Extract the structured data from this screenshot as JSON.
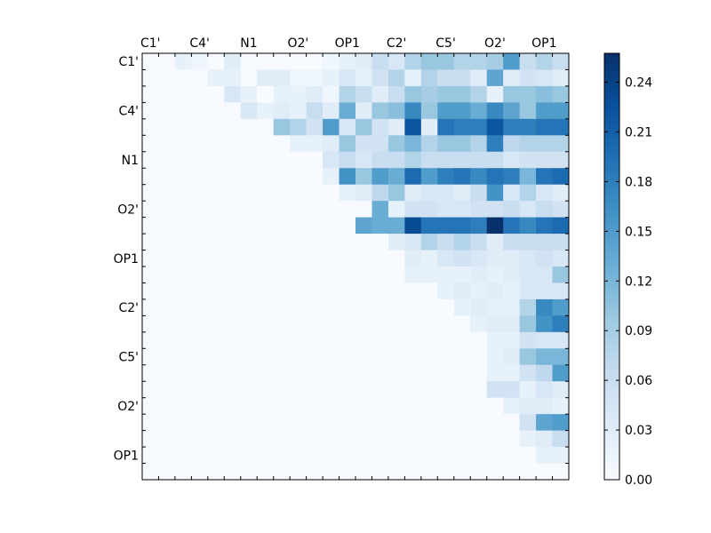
{
  "chart_data": {
    "type": "heatmap",
    "title": "",
    "xlabel": "",
    "ylabel": "",
    "grid": false,
    "colormap": "Blues",
    "n": 26,
    "x_tick_labels": [
      "C1'",
      "C4'",
      "N1",
      "O2'",
      "OP1",
      "C2'",
      "C5'",
      "O2'",
      "OP1"
    ],
    "y_tick_labels": [
      "C1'",
      "C4'",
      "N1",
      "O2'",
      "OP1",
      "C2'",
      "C5'",
      "O2'",
      "OP1"
    ],
    "colorbar": {
      "range": [
        0.0,
        0.2575
      ],
      "tick_labels": [
        "0.00",
        "0.03",
        "0.06",
        "0.09",
        "0.12",
        "0.15",
        "0.18",
        "0.21",
        "0.24"
      ]
    },
    "rows": [
      [
        0,
        0,
        0.02,
        0.01,
        0,
        0.03,
        0,
        0,
        0,
        0,
        0,
        0.01,
        0.02,
        0.03,
        0.06,
        0.04,
        0.08,
        0.1,
        0.1,
        0.08,
        0.08,
        0.09,
        0.15,
        0.06,
        0.08,
        0.06
      ],
      [
        0,
        0,
        0,
        0,
        0.02,
        0.02,
        0,
        0.03,
        0.03,
        0.01,
        0.01,
        0.02,
        0.04,
        0.02,
        0.05,
        0.08,
        0.02,
        0.08,
        0.06,
        0.06,
        0.03,
        0.14,
        0.03,
        0.05,
        0.04,
        0.03
      ],
      [
        0,
        0,
        0,
        0,
        0,
        0.04,
        0.02,
        0,
        0.02,
        0.02,
        0.03,
        0.01,
        0.08,
        0.06,
        0.03,
        0.06,
        0.1,
        0.09,
        0.1,
        0.1,
        0.08,
        0.02,
        0.1,
        0.1,
        0.11,
        0.1
      ],
      [
        0,
        0,
        0,
        0,
        0,
        0,
        0.04,
        0.02,
        0.03,
        0.02,
        0.06,
        0.03,
        0.13,
        0.03,
        0.1,
        0.11,
        0.17,
        0.1,
        0.15,
        0.15,
        0.13,
        0.17,
        0.14,
        0.1,
        0.15,
        0.15
      ],
      [
        0,
        0,
        0,
        0,
        0,
        0,
        0,
        0,
        0.1,
        0.08,
        0.05,
        0.15,
        0.04,
        0.1,
        0.05,
        0.03,
        0.22,
        0.03,
        0.19,
        0.18,
        0.18,
        0.22,
        0.18,
        0.18,
        0.19,
        0.19
      ],
      [
        0,
        0,
        0,
        0,
        0,
        0,
        0,
        0,
        0,
        0.02,
        0.02,
        0.03,
        0.1,
        0.05,
        0.05,
        0.1,
        0.12,
        0.08,
        0.1,
        0.1,
        0.08,
        0.18,
        0.07,
        0.08,
        0.08,
        0.08
      ],
      [
        0,
        0,
        0,
        0,
        0,
        0,
        0,
        0,
        0,
        0,
        0,
        0.04,
        0.06,
        0.04,
        0.06,
        0.06,
        0.08,
        0.06,
        0.06,
        0.06,
        0.06,
        0.06,
        0.04,
        0.05,
        0.05,
        0.05
      ],
      [
        0,
        0,
        0,
        0,
        0,
        0,
        0,
        0,
        0,
        0,
        0,
        0.02,
        0.16,
        0.1,
        0.15,
        0.13,
        0.2,
        0.15,
        0.18,
        0.19,
        0.17,
        0.19,
        0.18,
        0.12,
        0.19,
        0.2
      ],
      [
        0,
        0,
        0,
        0,
        0,
        0,
        0,
        0,
        0,
        0,
        0,
        0,
        0.02,
        0.03,
        0.07,
        0.1,
        0.03,
        0.04,
        0.04,
        0.03,
        0.06,
        0.16,
        0.04,
        0.08,
        0.04,
        0.03
      ],
      [
        0,
        0,
        0,
        0,
        0,
        0,
        0,
        0,
        0,
        0,
        0,
        0,
        0,
        0,
        0.13,
        0.02,
        0.05,
        0.05,
        0.04,
        0.04,
        0.05,
        0.05,
        0.06,
        0.04,
        0.06,
        0.05
      ],
      [
        0,
        0,
        0,
        0,
        0,
        0,
        0,
        0,
        0,
        0,
        0,
        0,
        0,
        0.14,
        0.13,
        0.13,
        0.23,
        0.19,
        0.19,
        0.19,
        0.18,
        0.26,
        0.19,
        0.17,
        0.19,
        0.2
      ],
      [
        0,
        0,
        0,
        0,
        0,
        0,
        0,
        0,
        0,
        0,
        0,
        0,
        0,
        0,
        0,
        0.03,
        0.04,
        0.08,
        0.06,
        0.08,
        0.06,
        0.03,
        0.06,
        0.06,
        0.06,
        0.06
      ],
      [
        0,
        0,
        0,
        0,
        0,
        0,
        0,
        0,
        0,
        0,
        0,
        0,
        0,
        0,
        0,
        0,
        0.03,
        0.02,
        0.04,
        0.05,
        0.04,
        0.03,
        0.03,
        0.04,
        0.05,
        0.04
      ],
      [
        0,
        0,
        0,
        0,
        0,
        0,
        0,
        0,
        0,
        0,
        0,
        0,
        0,
        0,
        0,
        0,
        0.02,
        0.02,
        0.02,
        0.02,
        0.03,
        0.02,
        0.03,
        0.04,
        0.04,
        0.1
      ],
      [
        0,
        0,
        0,
        0,
        0,
        0,
        0,
        0,
        0,
        0,
        0,
        0,
        0,
        0,
        0,
        0,
        0,
        0,
        0.02,
        0.03,
        0.02,
        0.03,
        0.02,
        0.04,
        0.04,
        0.04
      ],
      [
        0,
        0,
        0,
        0,
        0,
        0,
        0,
        0,
        0,
        0,
        0,
        0,
        0,
        0,
        0,
        0,
        0,
        0,
        0,
        0.02,
        0.03,
        0.02,
        0.02,
        0.08,
        0.17,
        0.15
      ],
      [
        0,
        0,
        0,
        0,
        0,
        0,
        0,
        0,
        0,
        0,
        0,
        0,
        0,
        0,
        0,
        0,
        0,
        0,
        0,
        0,
        0.02,
        0.03,
        0.03,
        0.1,
        0.16,
        0.18
      ],
      [
        0,
        0,
        0,
        0,
        0,
        0,
        0,
        0,
        0,
        0,
        0,
        0,
        0,
        0,
        0,
        0,
        0,
        0,
        0,
        0,
        0,
        0.02,
        0.02,
        0.05,
        0.04,
        0.04
      ],
      [
        0,
        0,
        0,
        0,
        0,
        0,
        0,
        0,
        0,
        0,
        0,
        0,
        0,
        0,
        0,
        0,
        0,
        0,
        0,
        0,
        0,
        0.02,
        0.03,
        0.1,
        0.12,
        0.12
      ],
      [
        0,
        0,
        0,
        0,
        0,
        0,
        0,
        0,
        0,
        0,
        0,
        0,
        0,
        0,
        0,
        0,
        0,
        0,
        0,
        0,
        0,
        0.02,
        0.02,
        0.05,
        0.07,
        0.15
      ],
      [
        0,
        0,
        0,
        0,
        0,
        0,
        0,
        0,
        0,
        0,
        0,
        0,
        0,
        0,
        0,
        0,
        0,
        0,
        0,
        0,
        0,
        0.05,
        0.05,
        0.02,
        0.04,
        0.03
      ],
      [
        0,
        0,
        0,
        0,
        0,
        0,
        0,
        0,
        0,
        0,
        0,
        0,
        0,
        0,
        0,
        0,
        0,
        0,
        0,
        0,
        0,
        0,
        0.02,
        0.03,
        0.03,
        0.02
      ],
      [
        0,
        0,
        0,
        0,
        0,
        0,
        0,
        0,
        0,
        0,
        0,
        0,
        0,
        0,
        0,
        0,
        0,
        0,
        0,
        0,
        0,
        0,
        0,
        0.05,
        0.14,
        0.15
      ],
      [
        0,
        0,
        0,
        0,
        0,
        0,
        0,
        0,
        0,
        0,
        0,
        0,
        0,
        0,
        0,
        0,
        0,
        0,
        0,
        0,
        0,
        0,
        0,
        0.02,
        0.03,
        0.06
      ],
      [
        0,
        0,
        0,
        0,
        0,
        0,
        0,
        0,
        0,
        0,
        0,
        0,
        0,
        0,
        0,
        0,
        0,
        0,
        0,
        0,
        0,
        0,
        0,
        0,
        0.02,
        0.02
      ],
      [
        0,
        0,
        0,
        0,
        0,
        0,
        0,
        0,
        0,
        0,
        0,
        0,
        0,
        0,
        0,
        0,
        0,
        0,
        0,
        0,
        0,
        0,
        0,
        0,
        0,
        0
      ]
    ]
  }
}
